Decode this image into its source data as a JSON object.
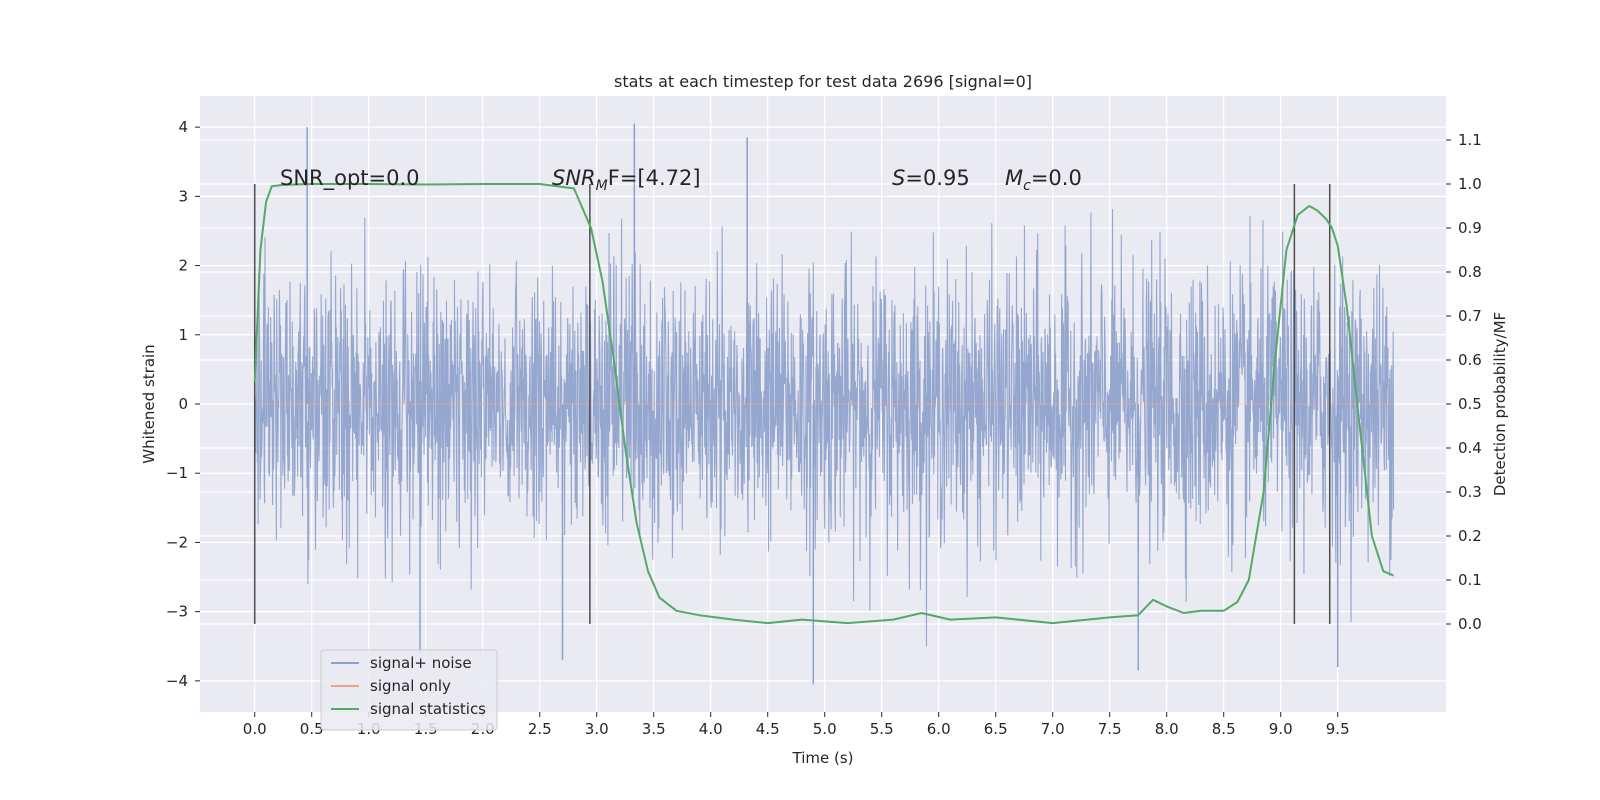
{
  "chart_data": {
    "type": "line",
    "title": "stats at each timestep for test data 2696 [signal=0]",
    "xlabel": "Time (s)",
    "ylabel_left": "Whitened strain",
    "ylabel_right": "Detection probability/MF",
    "xlim": [
      -0.48,
      10.45
    ],
    "ylim_left": [
      -4.45,
      4.45
    ],
    "ylim_right": [
      -0.2,
      1.2
    ],
    "x_ticks": [
      0.0,
      0.5,
      1.0,
      1.5,
      2.0,
      2.5,
      3.0,
      3.5,
      4.0,
      4.5,
      5.0,
      5.5,
      6.0,
      6.5,
      7.0,
      7.5,
      8.0,
      8.5,
      9.0,
      9.5
    ],
    "x_tick_labels": [
      "0.0",
      "0.5",
      "1.0",
      "1.5",
      "2.0",
      "2.5",
      "3.0",
      "3.5",
      "4.0",
      "4.5",
      "5.0",
      "5.5",
      "6.0",
      "6.5",
      "7.0",
      "7.5",
      "8.0",
      "8.5",
      "9.0",
      "9.5"
    ],
    "y_ticks_left": [
      -4,
      -3,
      -2,
      -1,
      0,
      1,
      2,
      3,
      4
    ],
    "y_tick_labels_left": [
      "−4",
      "−3",
      "−2",
      "−1",
      "0",
      "1",
      "2",
      "3",
      "4"
    ],
    "y_ticks_right": [
      0.0,
      0.1,
      0.2,
      0.3,
      0.4,
      0.5,
      0.6,
      0.7,
      0.8,
      0.9,
      1.0,
      1.1
    ],
    "y_tick_labels_right": [
      "0.0",
      "0.1",
      "0.2",
      "0.3",
      "0.4",
      "0.5",
      "0.6",
      "0.7",
      "0.8",
      "0.9",
      "1.0",
      "1.1"
    ],
    "grid": true,
    "legend": {
      "placement": "lower-left",
      "entries": [
        "signal+ noise",
        "signal only",
        "signal statistics"
      ]
    },
    "annotations": {
      "snr_opt": "SNR_opt=0.0",
      "snr_mf_main": "SNR",
      "snr_mf_sub": "M",
      "snr_mf_rest": "F=[4.72]",
      "s_main": "S",
      "s_rest": "=0.95",
      "mc_main": "M",
      "mc_sub": "c",
      "mc_rest": "=0.0"
    },
    "series": [
      {
        "name": "signal+ noise",
        "axis": "left",
        "color": "#8da0cb",
        "x_range": [
          0.0,
          9.99
        ],
        "typical_envelope": [
          -2.2,
          2.3
        ],
        "peaks": [
          [
            0.46,
            4.0
          ],
          [
            3.33,
            4.05
          ],
          [
            4.32,
            3.85
          ],
          [
            1.45,
            -3.6
          ],
          [
            4.9,
            -4.05
          ],
          [
            2.7,
            -3.7
          ],
          [
            9.5,
            -3.8
          ],
          [
            7.75,
            -3.85
          ]
        ]
      },
      {
        "name": "signal only",
        "axis": "left",
        "color": "#e8a58a",
        "x": [
          0.0,
          9.99
        ],
        "y": [
          0.0,
          0.0
        ]
      },
      {
        "name": "signal statistics",
        "axis": "right",
        "color": "#55a868",
        "x": [
          0.0,
          0.05,
          0.1,
          0.15,
          0.25,
          0.5,
          1.0,
          1.5,
          2.0,
          2.5,
          2.8,
          2.95,
          3.05,
          3.15,
          3.25,
          3.35,
          3.45,
          3.55,
          3.7,
          3.9,
          4.2,
          4.5,
          4.8,
          5.2,
          5.6,
          5.85,
          6.1,
          6.5,
          7.0,
          7.5,
          7.75,
          7.88,
          8.0,
          8.15,
          8.3,
          8.5,
          8.62,
          8.72,
          8.85,
          8.95,
          9.05,
          9.15,
          9.25,
          9.32,
          9.4,
          9.45,
          9.5,
          9.58,
          9.68,
          9.8,
          9.9,
          9.99
        ],
        "y": [
          0.55,
          0.85,
          0.96,
          0.995,
          0.998,
          1.0,
          1.0,
          0.999,
          1.0,
          1.0,
          0.99,
          0.9,
          0.78,
          0.6,
          0.4,
          0.23,
          0.12,
          0.06,
          0.03,
          0.02,
          0.01,
          0.002,
          0.01,
          0.002,
          0.01,
          0.025,
          0.01,
          0.015,
          0.002,
          0.015,
          0.02,
          0.055,
          0.04,
          0.025,
          0.03,
          0.03,
          0.05,
          0.1,
          0.3,
          0.6,
          0.85,
          0.93,
          0.95,
          0.94,
          0.92,
          0.9,
          0.86,
          0.72,
          0.48,
          0.2,
          0.12,
          0.11
        ]
      }
    ],
    "vertical_markers_x": [
      0.0,
      2.94,
      9.12,
      9.43
    ],
    "vertical_markers_range_right": [
      0.0,
      1.0
    ]
  }
}
